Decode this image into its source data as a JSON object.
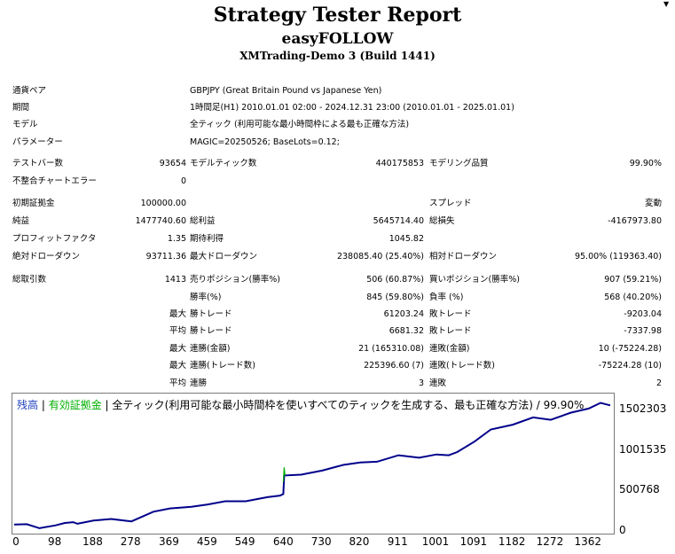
{
  "header": {
    "title": "Strategy Tester Report",
    "ea_name": "easyFOLLOW",
    "server": "XMTrading-Demo 3 (Build 1441)"
  },
  "settings": [
    {
      "label": "通貨ペア",
      "value": "GBPJPY (Great Britain Pound vs Japanese Yen)"
    },
    {
      "label": "期間",
      "value": "1時間足(H1) 2010.01.01 02:00 - 2024.12.31 23:00 (2010.01.01 - 2025.01.01)"
    },
    {
      "label": "モデル",
      "value": "全ティック (利用可能な最小時間枠による最も正確な方法)"
    },
    {
      "label": "パラメーター",
      "value": "MAGIC=20250526; BaseLots=0.12;"
    }
  ],
  "stats": {
    "bars_label": "テストバー数",
    "bars": "93654",
    "ticks_label": "モデルティック数",
    "ticks": "440175853",
    "quality_label": "モデリング品質",
    "quality": "99.90%",
    "mismatch_label": "不整合チャートエラー",
    "mismatch": "0",
    "deposit_label": "初期証拠金",
    "deposit": "100000.00",
    "spread_label": "スプレッド",
    "spread": "変動",
    "net_label": "純益",
    "net": "1477740.60",
    "gross_profit_label": "総利益",
    "gross_profit": "5645714.40",
    "gross_loss_label": "総損失",
    "gross_loss": "-4167973.80",
    "pf_label": "プロフィットファクタ",
    "pf": "1.35",
    "expected_label": "期待利得",
    "expected": "1045.82",
    "abs_dd_label": "絶対ドローダウン",
    "abs_dd": "93711.36",
    "max_dd_label": "最大ドローダウン",
    "max_dd": "238085.40 (25.40%)",
    "rel_dd_label": "相対ドローダウン",
    "rel_dd": "95.00% (119363.40)",
    "total_label": "総取引数",
    "total": "1413",
    "short_label": "売りポジション(勝率%)",
    "short": "506 (60.87%)",
    "long_label": "買いポジション(勝率%)",
    "long": "907 (59.21%)",
    "win_rate_label": "勝率(%)",
    "win_rate": "845 (59.80%)",
    "loss_rate_label": "負率 (%)",
    "loss_rate": "568 (40.20%)",
    "max_prefix": "最大",
    "avg_prefix": "平均",
    "largest_win_label": "勝トレード",
    "largest_win": "61203.24",
    "largest_loss_label": "敗トレード",
    "largest_loss": "-9203.04",
    "avg_win_label": "勝トレード",
    "avg_win": "6681.32",
    "avg_loss_label": "敗トレード",
    "avg_loss": "-7337.98",
    "consec_wins_amt_label": "連勝(金額)",
    "consec_wins_amt": "21 (165310.08)",
    "consec_loss_amt_label": "連敗(金額)",
    "consec_loss_amt": "10 (-75224.28)",
    "consec_profit_label": "連勝(トレード数)",
    "consec_profit": "225396.60 (7)",
    "consec_loss_label": "連敗(トレード数)",
    "consec_loss": "-75224.28 (10)",
    "avg_consec_wins_label": "連勝",
    "avg_consec_wins": "3",
    "avg_consec_loss_label": "連敗",
    "avg_consec_loss": "2"
  },
  "chart_legend": {
    "balance": "残高",
    "sep1": " | ",
    "equity": "有効証拠金",
    "sep2": " | ",
    "rest": "全ティック(利用可能な最小時間枠を使いすべてのティックを生成する、最も正確な方法) / 99.90%",
    "balance_color": "#1f3fbf",
    "equity_color": "#00b000"
  },
  "chart_data": {
    "type": "line",
    "x_ticks": [
      "0",
      "98",
      "188",
      "278",
      "369",
      "459",
      "549",
      "640",
      "730",
      "820",
      "911",
      "1001",
      "1091",
      "1182",
      "1272",
      "1362"
    ],
    "y_ticks": [
      "1502303",
      "1001535",
      "500768",
      "0"
    ],
    "xlim": [
      0,
      1413
    ],
    "ylim": [
      0,
      1650000
    ],
    "series": [
      {
        "name": "残高",
        "color": "#00008b",
        "x": [
          0,
          30,
          60,
          98,
          120,
          140,
          150,
          188,
          230,
          278,
          300,
          330,
          369,
          420,
          459,
          500,
          549,
          600,
          630,
          638,
          640,
          680,
          730,
          780,
          820,
          860,
          911,
          960,
          1001,
          1030,
          1050,
          1091,
          1130,
          1182,
          1230,
          1272,
          1320,
          1362,
          1390,
          1413
        ],
        "y": [
          90000,
          95000,
          45000,
          80000,
          110000,
          120000,
          100000,
          140000,
          160000,
          130000,
          180000,
          250000,
          290000,
          310000,
          340000,
          380000,
          380000,
          430000,
          450000,
          470000,
          700000,
          710000,
          760000,
          830000,
          860000,
          870000,
          950000,
          920000,
          960000,
          950000,
          990000,
          1120000,
          1270000,
          1330000,
          1420000,
          1390000,
          1480000,
          1530000,
          1600000,
          1570000
        ]
      },
      {
        "name": "有効証拠金",
        "color": "#00b000",
        "x": [
          638,
          640,
          642
        ],
        "y": [
          620000,
          800000,
          700000
        ]
      }
    ]
  }
}
